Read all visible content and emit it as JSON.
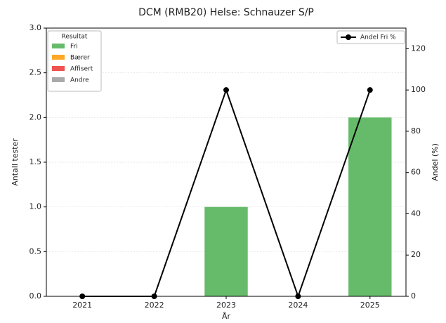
{
  "chart_data": {
    "type": "bar",
    "title": "DCM (RMB20) Helse: Schnauzer S/P",
    "xlabel": "År",
    "ylabel": "Antall tester",
    "y2label": "Andel (%)",
    "legend_title": "Resultat",
    "categories": [
      "2021",
      "2022",
      "2023",
      "2024",
      "2025"
    ],
    "series": [
      {
        "name": "Fri",
        "color": "#66bb6a",
        "values": [
          0,
          0,
          1,
          0,
          2
        ]
      },
      {
        "name": "Bærer",
        "color": "#ffa726",
        "values": [
          0,
          0,
          0,
          0,
          0
        ]
      },
      {
        "name": "Affisert",
        "color": "#ef5350",
        "values": [
          0,
          0,
          0,
          0,
          0
        ]
      },
      {
        "name": "Andre",
        "color": "#aaaaaa",
        "values": [
          0,
          0,
          0,
          0,
          0
        ]
      },
      {
        "name": "Andel Fri %",
        "color": "#000000",
        "type": "line",
        "axis": "y2",
        "values": [
          0,
          0,
          100,
          0,
          100
        ]
      }
    ],
    "ylim": [
      0,
      3
    ],
    "yticks": [
      {
        "value": 0,
        "label": "0.0"
      },
      {
        "value": 0.5,
        "label": "0.5"
      },
      {
        "value": 1,
        "label": "1.0"
      },
      {
        "value": 1.5,
        "label": "1.5"
      },
      {
        "value": 2,
        "label": "2.0"
      },
      {
        "value": 2.5,
        "label": "2.5"
      },
      {
        "value": 3,
        "label": "3.0"
      }
    ],
    "y2lim": [
      0,
      130
    ],
    "y2ticks": [
      0,
      20,
      40,
      60,
      80,
      100,
      120
    ],
    "grid": true,
    "stacked": true
  }
}
